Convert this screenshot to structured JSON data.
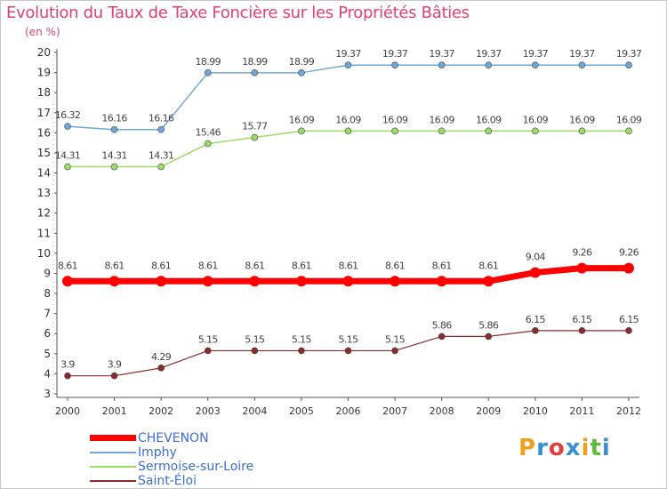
{
  "chart_data": {
    "type": "line",
    "title": "Evolution du Taux de Taxe Foncière sur les Propriétés Bâties",
    "ylabel": "(en %)",
    "xlabel": "",
    "x": [
      "2000",
      "2001",
      "2002",
      "2003",
      "2004",
      "2005",
      "2006",
      "2007",
      "2008",
      "2009",
      "2010",
      "2011",
      "2012"
    ],
    "ylim": [
      3,
      20
    ],
    "yticks": [
      3,
      4,
      5,
      6,
      7,
      8,
      9,
      10,
      11,
      12,
      13,
      14,
      15,
      16,
      17,
      18,
      19,
      20
    ],
    "grid": false,
    "legend_position": "bottom-left",
    "series": [
      {
        "name": "CHEVENON",
        "color": "#ff0000",
        "values": [
          8.61,
          8.61,
          8.61,
          8.61,
          8.61,
          8.61,
          8.61,
          8.61,
          8.61,
          8.61,
          9.04,
          9.26,
          9.26
        ],
        "labels": [
          "8.61",
          "8.61",
          "8.61",
          "8.61",
          "8.61",
          "8.61",
          "8.61",
          "8.61",
          "8.61",
          "8.61",
          "9.04",
          "9.26",
          "9.26"
        ]
      },
      {
        "name": "Imphy",
        "color": "#6fa8d8",
        "values": [
          16.32,
          16.16,
          16.16,
          18.99,
          18.99,
          18.99,
          19.37,
          19.37,
          19.37,
          19.37,
          19.37,
          19.37,
          19.37
        ],
        "labels": [
          "16.32",
          "16.16",
          "16.16",
          "18.99",
          "18.99",
          "18.99",
          "19.37",
          "19.37",
          "19.37",
          "19.37",
          "19.37",
          "19.37",
          "19.37"
        ]
      },
      {
        "name": "Sermoise-sur-Loire",
        "color": "#99dd66",
        "values": [
          14.31,
          14.31,
          14.31,
          15.46,
          15.77,
          16.09,
          16.09,
          16.09,
          16.09,
          16.09,
          16.09,
          16.09,
          16.09
        ],
        "labels": [
          "14.31",
          "14.31",
          "14.31",
          "15.46",
          "15.77",
          "16.09",
          "16.09",
          "16.09",
          "16.09",
          "16.09",
          "16.09",
          "16.09",
          "16.09"
        ]
      },
      {
        "name": "Saint-Éloi",
        "color": "#8b2c2c",
        "values": [
          3.9,
          3.9,
          4.29,
          5.15,
          5.15,
          5.15,
          5.15,
          5.15,
          5.86,
          5.86,
          6.15,
          6.15,
          6.15
        ],
        "labels": [
          "3.9",
          "3.9",
          "4.29",
          "5.15",
          "5.15",
          "5.15",
          "5.15",
          "5.15",
          "5.86",
          "5.86",
          "6.15",
          "6.15",
          "6.15"
        ]
      }
    ]
  },
  "brand": {
    "letters": [
      "P",
      "r",
      "o",
      "x",
      "i",
      "t",
      "i"
    ],
    "colors": [
      "#f0a020",
      "#3a8fd0",
      "#e04040",
      "#3a8fd0",
      "#f0a020",
      "#60b840",
      "#3a8fd0"
    ]
  }
}
